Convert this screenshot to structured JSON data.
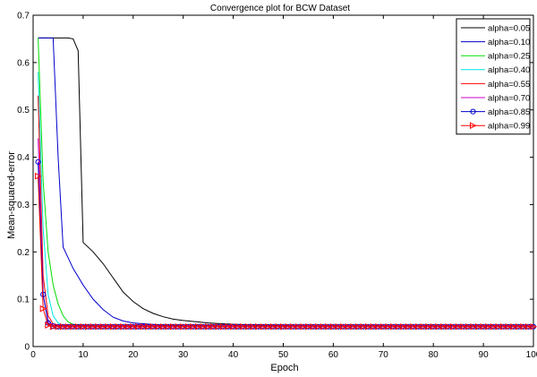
{
  "chart_data": {
    "type": "line",
    "title": "Convergence plot for BCW Dataset",
    "xlabel": "Epoch",
    "ylabel": "Mean-squared-error",
    "xlim": [
      0,
      100
    ],
    "ylim": [
      0,
      0.7
    ],
    "xticks": [
      "0",
      "10",
      "20",
      "30",
      "40",
      "50",
      "60",
      "70",
      "80",
      "90",
      "100"
    ],
    "yticks": [
      "0",
      "0.1",
      "0.2",
      "0.3",
      "0.4",
      "0.5",
      "0.6",
      "0.7"
    ],
    "xtick_values": [
      0,
      10,
      20,
      30,
      40,
      50,
      60,
      70,
      80,
      90,
      100
    ],
    "ytick_values": [
      0,
      0.1,
      0.2,
      0.3,
      0.4,
      0.5,
      0.6,
      0.7
    ],
    "legend_position": "top-right",
    "grid": false,
    "series": [
      {
        "name": "alpha=0.05",
        "color": "#000000",
        "marker": "none",
        "points": [
          [
            1,
            0.652
          ],
          [
            2,
            0.652
          ],
          [
            3,
            0.652
          ],
          [
            4,
            0.652
          ],
          [
            5,
            0.652
          ],
          [
            6,
            0.652
          ],
          [
            7,
            0.652
          ],
          [
            8,
            0.65
          ],
          [
            9,
            0.625
          ],
          [
            10,
            0.22
          ],
          [
            12,
            0.2
          ],
          [
            14,
            0.175
          ],
          [
            16,
            0.145
          ],
          [
            18,
            0.115
          ],
          [
            20,
            0.095
          ],
          [
            22,
            0.08
          ],
          [
            24,
            0.07
          ],
          [
            26,
            0.063
          ],
          [
            28,
            0.058
          ],
          [
            30,
            0.055
          ],
          [
            35,
            0.05
          ],
          [
            40,
            0.047
          ],
          [
            50,
            0.044
          ],
          [
            60,
            0.043
          ],
          [
            70,
            0.043
          ],
          [
            80,
            0.043
          ],
          [
            90,
            0.043
          ],
          [
            100,
            0.043
          ]
        ]
      },
      {
        "name": "alpha=0.10",
        "color": "#0000cc",
        "marker": "none",
        "points": [
          [
            1,
            0.652
          ],
          [
            2,
            0.652
          ],
          [
            3,
            0.652
          ],
          [
            4,
            0.652
          ],
          [
            5,
            0.4
          ],
          [
            6,
            0.21
          ],
          [
            8,
            0.165
          ],
          [
            10,
            0.13
          ],
          [
            12,
            0.1
          ],
          [
            14,
            0.078
          ],
          [
            16,
            0.062
          ],
          [
            18,
            0.054
          ],
          [
            20,
            0.05
          ],
          [
            25,
            0.046
          ],
          [
            30,
            0.044
          ],
          [
            40,
            0.043
          ],
          [
            60,
            0.043
          ],
          [
            80,
            0.043
          ],
          [
            100,
            0.043
          ]
        ]
      },
      {
        "name": "alpha=0.25",
        "color": "#00dd00",
        "marker": "none",
        "points": [
          [
            1,
            0.652
          ],
          [
            2,
            0.35
          ],
          [
            3,
            0.2
          ],
          [
            4,
            0.13
          ],
          [
            5,
            0.09
          ],
          [
            6,
            0.065
          ],
          [
            7,
            0.052
          ],
          [
            8,
            0.047
          ],
          [
            10,
            0.044
          ],
          [
            15,
            0.043
          ],
          [
            30,
            0.043
          ],
          [
            60,
            0.043
          ],
          [
            100,
            0.043
          ]
        ]
      },
      {
        "name": "alpha=0.40",
        "color": "#00e5e5",
        "marker": "none",
        "points": [
          [
            1,
            0.58
          ],
          [
            2,
            0.25
          ],
          [
            3,
            0.11
          ],
          [
            4,
            0.065
          ],
          [
            5,
            0.05
          ],
          [
            6,
            0.045
          ],
          [
            8,
            0.043
          ],
          [
            20,
            0.043
          ],
          [
            60,
            0.043
          ],
          [
            100,
            0.043
          ]
        ]
      },
      {
        "name": "alpha=0.55",
        "color": "#ff0000",
        "marker": "none",
        "points": [
          [
            1,
            0.53
          ],
          [
            2,
            0.15
          ],
          [
            3,
            0.065
          ],
          [
            4,
            0.048
          ],
          [
            5,
            0.044
          ],
          [
            8,
            0.043
          ],
          [
            20,
            0.043
          ],
          [
            60,
            0.043
          ],
          [
            100,
            0.043
          ]
        ]
      },
      {
        "name": "alpha=0.70",
        "color": "#cc00cc",
        "marker": "none",
        "points": [
          [
            1,
            0.44
          ],
          [
            2,
            0.11
          ],
          [
            3,
            0.055
          ],
          [
            4,
            0.045
          ],
          [
            6,
            0.043
          ],
          [
            20,
            0.043
          ],
          [
            60,
            0.043
          ],
          [
            100,
            0.043
          ]
        ]
      },
      {
        "name": "alpha=0.85",
        "color": "#0000cc",
        "marker": "circle",
        "points": [
          [
            1,
            0.39
          ],
          [
            2,
            0.11
          ],
          [
            3,
            0.05
          ],
          [
            4,
            0.043
          ],
          [
            5,
            0.042
          ],
          [
            6,
            0.042
          ],
          [
            7,
            0.042
          ],
          [
            8,
            0.042
          ],
          [
            9,
            0.042
          ],
          [
            10,
            0.042
          ],
          [
            11,
            0.042
          ],
          [
            12,
            0.042
          ],
          [
            13,
            0.042
          ],
          [
            14,
            0.042
          ],
          [
            15,
            0.042
          ],
          [
            16,
            0.042
          ],
          [
            17,
            0.042
          ],
          [
            18,
            0.042
          ],
          [
            19,
            0.042
          ],
          [
            20,
            0.042
          ],
          [
            21,
            0.042
          ],
          [
            22,
            0.042
          ],
          [
            23,
            0.042
          ],
          [
            24,
            0.042
          ],
          [
            25,
            0.042
          ],
          [
            26,
            0.042
          ],
          [
            27,
            0.042
          ],
          [
            28,
            0.042
          ],
          [
            29,
            0.042
          ],
          [
            30,
            0.042
          ],
          [
            31,
            0.042
          ],
          [
            32,
            0.042
          ],
          [
            33,
            0.042
          ],
          [
            34,
            0.042
          ],
          [
            35,
            0.042
          ],
          [
            36,
            0.042
          ],
          [
            37,
            0.042
          ],
          [
            38,
            0.042
          ],
          [
            39,
            0.042
          ],
          [
            40,
            0.042
          ],
          [
            41,
            0.042
          ],
          [
            42,
            0.042
          ],
          [
            43,
            0.042
          ],
          [
            44,
            0.042
          ],
          [
            45,
            0.042
          ],
          [
            46,
            0.042
          ],
          [
            47,
            0.042
          ],
          [
            48,
            0.042
          ],
          [
            49,
            0.042
          ],
          [
            50,
            0.042
          ],
          [
            51,
            0.042
          ],
          [
            52,
            0.042
          ],
          [
            53,
            0.042
          ],
          [
            54,
            0.042
          ],
          [
            55,
            0.042
          ],
          [
            56,
            0.042
          ],
          [
            57,
            0.042
          ],
          [
            58,
            0.042
          ],
          [
            59,
            0.042
          ],
          [
            60,
            0.042
          ],
          [
            61,
            0.042
          ],
          [
            62,
            0.042
          ],
          [
            63,
            0.042
          ],
          [
            64,
            0.042
          ],
          [
            65,
            0.042
          ],
          [
            66,
            0.042
          ],
          [
            67,
            0.042
          ],
          [
            68,
            0.042
          ],
          [
            69,
            0.042
          ],
          [
            70,
            0.042
          ],
          [
            71,
            0.042
          ],
          [
            72,
            0.042
          ],
          [
            73,
            0.042
          ],
          [
            74,
            0.042
          ],
          [
            75,
            0.042
          ],
          [
            76,
            0.042
          ],
          [
            77,
            0.042
          ],
          [
            78,
            0.042
          ],
          [
            79,
            0.042
          ],
          [
            80,
            0.042
          ],
          [
            81,
            0.042
          ],
          [
            82,
            0.042
          ],
          [
            83,
            0.042
          ],
          [
            84,
            0.042
          ],
          [
            85,
            0.042
          ],
          [
            86,
            0.042
          ],
          [
            87,
            0.042
          ],
          [
            88,
            0.042
          ],
          [
            89,
            0.042
          ],
          [
            90,
            0.042
          ],
          [
            91,
            0.042
          ],
          [
            92,
            0.042
          ],
          [
            93,
            0.042
          ],
          [
            94,
            0.042
          ],
          [
            95,
            0.042
          ],
          [
            96,
            0.042
          ],
          [
            97,
            0.042
          ],
          [
            98,
            0.042
          ],
          [
            99,
            0.042
          ],
          [
            100,
            0.042
          ]
        ]
      },
      {
        "name": "alpha=0.99",
        "color": "#ff0000",
        "marker": "triangle-right",
        "points": [
          [
            1,
            0.36
          ],
          [
            2,
            0.08
          ],
          [
            3,
            0.045
          ],
          [
            4,
            0.042
          ],
          [
            5,
            0.042
          ],
          [
            6,
            0.042
          ],
          [
            7,
            0.042
          ],
          [
            8,
            0.042
          ],
          [
            9,
            0.042
          ],
          [
            10,
            0.042
          ],
          [
            11,
            0.042
          ],
          [
            12,
            0.042
          ],
          [
            13,
            0.042
          ],
          [
            14,
            0.042
          ],
          [
            15,
            0.042
          ],
          [
            16,
            0.042
          ],
          [
            17,
            0.042
          ],
          [
            18,
            0.042
          ],
          [
            19,
            0.042
          ],
          [
            20,
            0.042
          ],
          [
            21,
            0.042
          ],
          [
            22,
            0.042
          ],
          [
            23,
            0.042
          ],
          [
            24,
            0.042
          ],
          [
            25,
            0.042
          ],
          [
            26,
            0.042
          ],
          [
            27,
            0.042
          ],
          [
            28,
            0.042
          ],
          [
            29,
            0.042
          ],
          [
            30,
            0.042
          ],
          [
            31,
            0.042
          ],
          [
            32,
            0.042
          ],
          [
            33,
            0.042
          ],
          [
            34,
            0.042
          ],
          [
            35,
            0.042
          ],
          [
            36,
            0.042
          ],
          [
            37,
            0.042
          ],
          [
            38,
            0.042
          ],
          [
            39,
            0.042
          ],
          [
            40,
            0.042
          ],
          [
            41,
            0.042
          ],
          [
            42,
            0.042
          ],
          [
            43,
            0.042
          ],
          [
            44,
            0.042
          ],
          [
            45,
            0.042
          ],
          [
            46,
            0.042
          ],
          [
            47,
            0.042
          ],
          [
            48,
            0.042
          ],
          [
            49,
            0.042
          ],
          [
            50,
            0.042
          ],
          [
            51,
            0.042
          ],
          [
            52,
            0.042
          ],
          [
            53,
            0.042
          ],
          [
            54,
            0.042
          ],
          [
            55,
            0.042
          ],
          [
            56,
            0.042
          ],
          [
            57,
            0.042
          ],
          [
            58,
            0.042
          ],
          [
            59,
            0.042
          ],
          [
            60,
            0.042
          ],
          [
            61,
            0.042
          ],
          [
            62,
            0.042
          ],
          [
            63,
            0.042
          ],
          [
            64,
            0.042
          ],
          [
            65,
            0.042
          ],
          [
            66,
            0.042
          ],
          [
            67,
            0.042
          ],
          [
            68,
            0.042
          ],
          [
            69,
            0.042
          ],
          [
            70,
            0.042
          ],
          [
            71,
            0.042
          ],
          [
            72,
            0.042
          ],
          [
            73,
            0.042
          ],
          [
            74,
            0.042
          ],
          [
            75,
            0.042
          ],
          [
            76,
            0.042
          ],
          [
            77,
            0.042
          ],
          [
            78,
            0.042
          ],
          [
            79,
            0.042
          ],
          [
            80,
            0.042
          ],
          [
            81,
            0.042
          ],
          [
            82,
            0.042
          ],
          [
            83,
            0.042
          ],
          [
            84,
            0.042
          ],
          [
            85,
            0.042
          ],
          [
            86,
            0.042
          ],
          [
            87,
            0.042
          ],
          [
            88,
            0.042
          ],
          [
            89,
            0.042
          ],
          [
            90,
            0.042
          ],
          [
            91,
            0.042
          ],
          [
            92,
            0.042
          ],
          [
            93,
            0.042
          ],
          [
            94,
            0.042
          ],
          [
            95,
            0.042
          ],
          [
            96,
            0.042
          ],
          [
            97,
            0.042
          ],
          [
            98,
            0.042
          ],
          [
            99,
            0.042
          ],
          [
            100,
            0.042
          ]
        ]
      }
    ]
  }
}
